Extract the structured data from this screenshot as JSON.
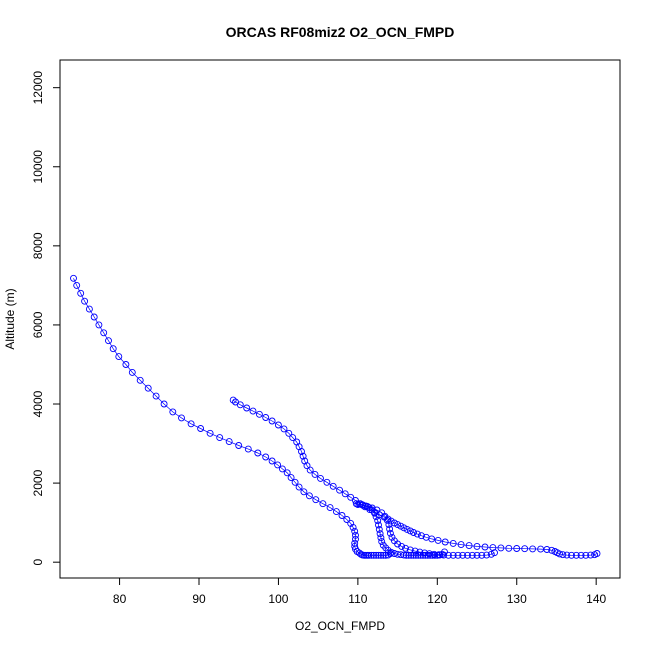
{
  "chart_data": {
    "type": "scatter",
    "title": "ORCAS RF08miz2 O2_OCN_FMPD",
    "xlabel": "O2_OCN_FMPD",
    "ylabel": "Altitude (m)",
    "xlim": [
      72.5,
      143
    ],
    "ylim": [
      -400,
      12700
    ],
    "xticks": [
      80,
      90,
      100,
      110,
      120,
      130,
      140
    ],
    "yticks": [
      0,
      2000,
      4000,
      6000,
      8000,
      10000,
      12000
    ],
    "grid": false,
    "legend": "none",
    "marker": "open-circle",
    "connected": true,
    "color": "#0000ff",
    "series": [
      {
        "x": [
          74.2,
          74.6,
          75.1,
          75.6,
          76.2,
          76.8,
          77.4,
          78.0,
          78.6,
          79.2,
          79.9,
          80.8,
          81.6,
          82.6,
          83.6,
          84.6,
          85.6,
          86.7,
          87.8,
          89.0,
          90.2,
          91.4,
          92.6,
          93.8,
          95.0,
          96.2,
          97.4,
          98.4,
          99.2,
          99.9,
          100.5,
          101.1,
          101.6,
          102.1,
          102.6,
          103.2,
          103.9,
          104.7,
          105.6,
          106.5,
          107.3,
          108.0,
          108.6,
          109.1,
          109.4,
          109.6,
          109.7,
          109.7,
          109.6,
          109.6,
          109.7,
          109.9,
          110.2,
          110.4,
          110.6,
          110.8,
          111.0,
          111.2,
          111.4,
          111.7,
          112.0,
          112.3,
          112.6,
          112.9,
          113.2,
          113.5,
          113.8,
          114.1
        ],
        "y": [
          7180,
          7000,
          6800,
          6600,
          6400,
          6200,
          6000,
          5800,
          5600,
          5400,
          5200,
          5000,
          4800,
          4600,
          4400,
          4200,
          4000,
          3800,
          3650,
          3500,
          3380,
          3260,
          3150,
          3050,
          2950,
          2860,
          2760,
          2660,
          2560,
          2460,
          2360,
          2260,
          2140,
          2020,
          1900,
          1780,
          1680,
          1580,
          1480,
          1380,
          1280,
          1180,
          1080,
          980,
          880,
          780,
          680,
          580,
          480,
          400,
          330,
          270,
          230,
          200,
          180,
          175,
          175,
          175,
          175,
          175,
          175,
          175,
          175,
          175,
          175,
          175,
          180,
          220
        ]
      },
      {
        "x": [
          94.3,
          94.6,
          95.2,
          96.0,
          96.8,
          97.6,
          98.4,
          99.2,
          100.0,
          100.7,
          101.3,
          101.8,
          102.3,
          102.6,
          102.9,
          103.1,
          103.3,
          103.6,
          104.0,
          104.6,
          105.3,
          106.1,
          106.9,
          107.7,
          108.4,
          109.1,
          109.7,
          110.3,
          110.9,
          111.5,
          112.1,
          112.7,
          113.3,
          113.8,
          114.2,
          114.6,
          115.0,
          115.4,
          115.8,
          116.2,
          116.6,
          117.0,
          117.5,
          118.0,
          118.6,
          119.3,
          120.1,
          121.0,
          122.0,
          123.0,
          124.0,
          125.0,
          126.0,
          127.0,
          128.0,
          129.0,
          130.0,
          131.0,
          132.0,
          133.0,
          133.8,
          134.4,
          134.8,
          135.1,
          135.4,
          135.8,
          136.3,
          136.9,
          137.5,
          138.1,
          138.7,
          139.3,
          139.8,
          140.1
        ],
        "y": [
          4100,
          4050,
          3980,
          3900,
          3820,
          3740,
          3660,
          3570,
          3470,
          3370,
          3260,
          3150,
          3040,
          2920,
          2800,
          2680,
          2560,
          2440,
          2330,
          2220,
          2120,
          2020,
          1920,
          1820,
          1730,
          1640,
          1560,
          1480,
          1400,
          1330,
          1260,
          1200,
          1140,
          1090,
          1040,
          990,
          950,
          910,
          870,
          830,
          790,
          750,
          710,
          670,
          630,
          590,
          550,
          510,
          475,
          445,
          420,
          400,
          385,
          370,
          360,
          350,
          345,
          340,
          335,
          330,
          320,
          300,
          270,
          240,
          210,
          190,
          180,
          175,
          175,
          175,
          175,
          180,
          190,
          220
        ]
      },
      {
        "x": [
          109.8,
          110.2,
          110.6,
          111.0,
          111.4,
          111.8,
          112.1,
          112.3,
          112.5,
          112.6,
          112.7,
          112.8,
          112.9,
          113.0,
          113.2,
          113.5,
          113.8,
          114.2,
          114.6,
          115.0,
          115.4,
          115.8,
          116.1,
          116.4,
          116.7,
          117.0,
          117.3,
          117.6,
          117.9,
          118.2,
          118.5,
          118.8,
          119.1,
          119.4,
          119.7,
          120.0,
          120.3,
          120.6,
          120.9
        ],
        "y": [
          1480,
          1470,
          1450,
          1420,
          1380,
          1320,
          1240,
          1150,
          1050,
          940,
          830,
          720,
          620,
          520,
          430,
          360,
          300,
          250,
          220,
          200,
          190,
          180,
          175,
          175,
          175,
          175,
          175,
          175,
          175,
          175,
          175,
          175,
          175,
          175,
          175,
          175,
          180,
          200,
          260
        ]
      },
      {
        "x": [
          110.0,
          110.6,
          111.2,
          111.8,
          112.4,
          113.0,
          113.4,
          113.7,
          113.9,
          114.0,
          114.1,
          114.3,
          114.6,
          115.0,
          115.5,
          116.0,
          116.6,
          117.2,
          117.8,
          118.4,
          119.0,
          119.6,
          120.2,
          120.8,
          121.4,
          122.0,
          122.6,
          123.2,
          123.8,
          124.4,
          125.0,
          125.6,
          126.2,
          126.8,
          127.2
        ],
        "y": [
          1460,
          1440,
          1410,
          1370,
          1320,
          1250,
          1160,
          1060,
          950,
          840,
          730,
          630,
          540,
          460,
          400,
          350,
          310,
          280,
          255,
          235,
          215,
          200,
          190,
          180,
          175,
          175,
          175,
          175,
          175,
          175,
          175,
          175,
          180,
          200,
          240
        ]
      }
    ]
  }
}
